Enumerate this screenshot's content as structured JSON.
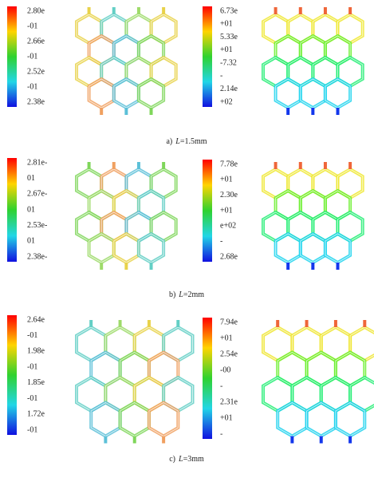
{
  "panels": [
    {
      "caption": {
        "label": "a)",
        "variable": "L",
        "value": "=1.5mm"
      },
      "left_colorbar": {
        "labels": [
          "2.80e",
          "-01",
          "2.66e",
          "-01",
          "2.52e",
          "-01",
          "2.38e"
        ]
      },
      "right_colorbar": {
        "labels": [
          "6.73e",
          "+01",
          "5.33e",
          "+01",
          "-7.32",
          "-",
          "2.14e",
          "+02"
        ]
      }
    },
    {
      "caption": {
        "label": "b)",
        "variable": "L",
        "value": "=2mm"
      },
      "left_colorbar": {
        "labels": [
          "2.81e-",
          "01",
          "2.67e-",
          "01",
          "2.53e-",
          "01",
          "2.38e-"
        ]
      },
      "right_colorbar": {
        "labels": [
          "7.78e",
          "+01",
          "2.30e",
          "+01",
          "e+02",
          "-",
          "2.68e"
        ]
      }
    },
    {
      "caption": {
        "label": "c)",
        "variable": "L",
        "value": "=3mm"
      },
      "left_colorbar": {
        "labels": [
          "2.64e",
          "-01",
          "1.98e",
          "-01",
          "1.85e",
          "-01",
          "1.72e",
          "-01"
        ]
      },
      "right_colorbar": {
        "labels": [
          "7.94e",
          "+01",
          "2.54e",
          "-00",
          "-",
          "2.31e",
          "+01",
          "-"
        ]
      }
    }
  ]
}
